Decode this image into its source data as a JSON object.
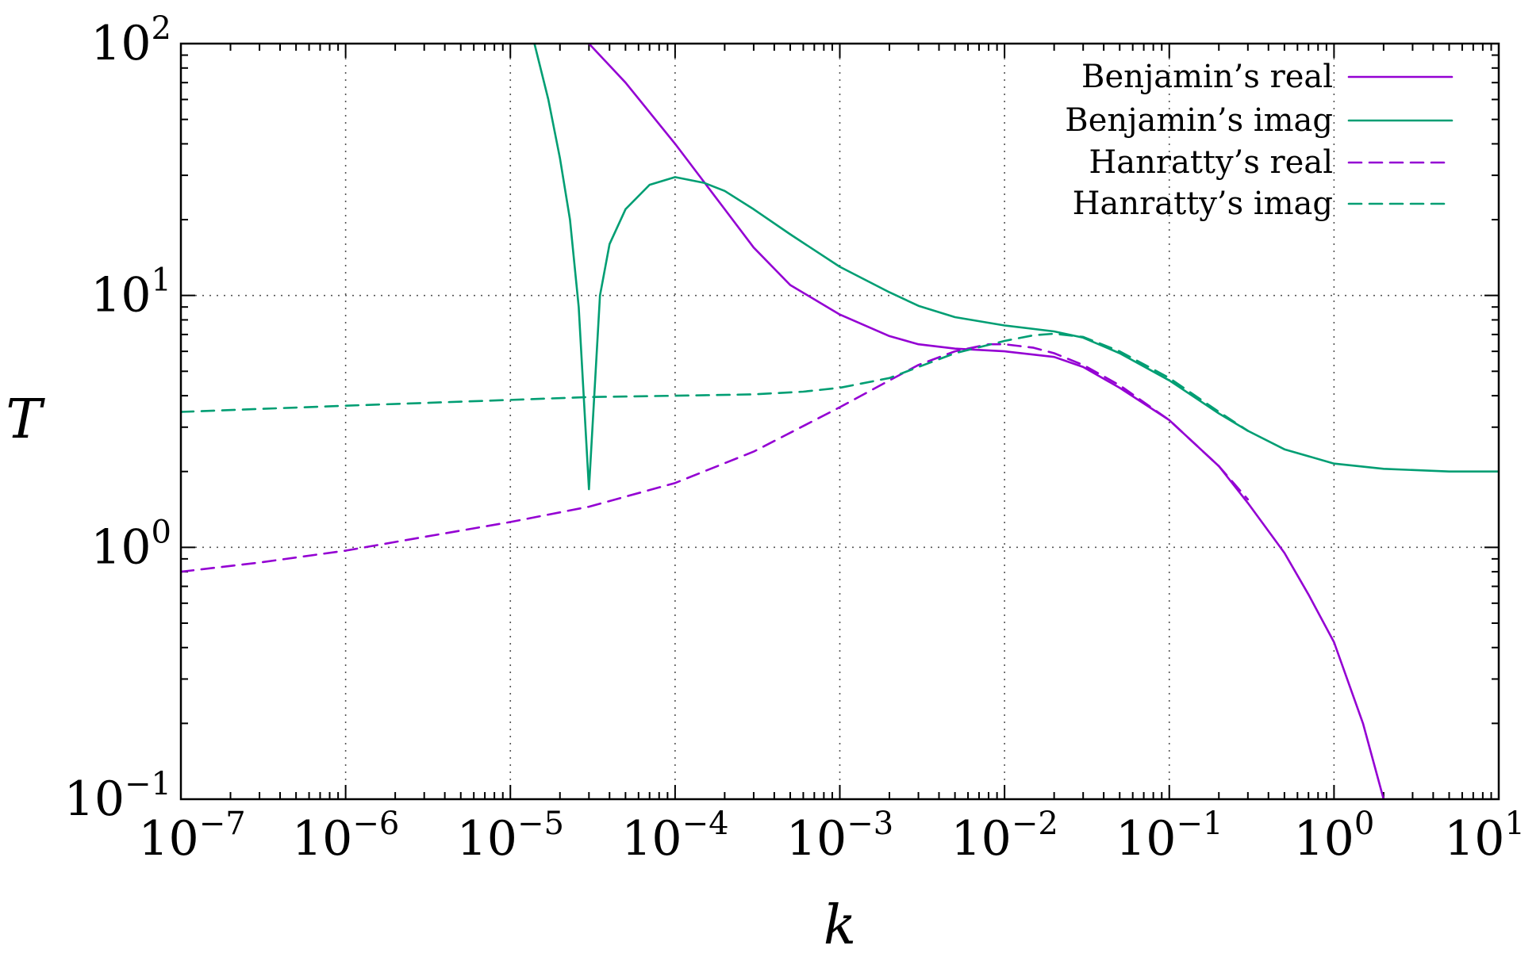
{
  "chart_data": {
    "type": "line",
    "xlabel": "k",
    "ylabel": "T",
    "x_scale": "log",
    "y_scale": "log",
    "xlim": [
      1e-07,
      10
    ],
    "ylim": [
      0.1,
      100
    ],
    "grid": true,
    "legend_position": "top-right",
    "x_ticks": [
      {
        "value": 1e-07,
        "base": "10",
        "exp": "−7"
      },
      {
        "value": 1e-06,
        "base": "10",
        "exp": "−6"
      },
      {
        "value": 1e-05,
        "base": "10",
        "exp": "−5"
      },
      {
        "value": 0.0001,
        "base": "10",
        "exp": "−4"
      },
      {
        "value": 0.001,
        "base": "10",
        "exp": "−3"
      },
      {
        "value": 0.01,
        "base": "10",
        "exp": "−2"
      },
      {
        "value": 0.1,
        "base": "10",
        "exp": "−1"
      },
      {
        "value": 1,
        "base": "10",
        "exp": "0"
      },
      {
        "value": 10,
        "base": "10",
        "exp": "1"
      }
    ],
    "y_ticks": [
      {
        "value": 0.1,
        "base": "10",
        "exp": "−1"
      },
      {
        "value": 1,
        "base": "10",
        "exp": "0"
      },
      {
        "value": 10,
        "base": "10",
        "exp": "1"
      },
      {
        "value": 100,
        "base": "10",
        "exp": "2"
      }
    ],
    "series": [
      {
        "name": "Benjamin’s real",
        "color": "#9400d3",
        "dash": "solid",
        "points": [
          [
            3e-05,
            100
          ],
          [
            5e-05,
            70
          ],
          [
            0.0001,
            40
          ],
          [
            0.0002,
            22
          ],
          [
            0.0003,
            15.5
          ],
          [
            0.0005,
            11
          ],
          [
            0.001,
            8.4
          ],
          [
            0.002,
            6.9
          ],
          [
            0.003,
            6.4
          ],
          [
            0.005,
            6.15
          ],
          [
            0.01,
            6.0
          ],
          [
            0.02,
            5.7
          ],
          [
            0.03,
            5.2
          ],
          [
            0.05,
            4.3
          ],
          [
            0.1,
            3.2
          ],
          [
            0.2,
            2.1
          ],
          [
            0.3,
            1.5
          ],
          [
            0.5,
            0.95
          ],
          [
            0.7,
            0.65
          ],
          [
            1,
            0.42
          ],
          [
            1.5,
            0.2
          ],
          [
            2,
            0.1
          ]
        ]
      },
      {
        "name": "Benjamin’s imag",
        "color": "#009e73",
        "dash": "solid",
        "points": [
          [
            1.4e-05,
            100
          ],
          [
            1.7e-05,
            60
          ],
          [
            2e-05,
            35
          ],
          [
            2.3e-05,
            20
          ],
          [
            2.6e-05,
            9
          ],
          [
            3e-05,
            1.7
          ],
          [
            3.5e-05,
            10
          ],
          [
            4e-05,
            16
          ],
          [
            5e-05,
            22
          ],
          [
            7e-05,
            27.5
          ],
          [
            0.0001,
            29.5
          ],
          [
            0.00015,
            28
          ],
          [
            0.0002,
            26
          ],
          [
            0.0003,
            22
          ],
          [
            0.0005,
            17.5
          ],
          [
            0.001,
            13
          ],
          [
            0.002,
            10.3
          ],
          [
            0.003,
            9.1
          ],
          [
            0.005,
            8.2
          ],
          [
            0.01,
            7.6
          ],
          [
            0.02,
            7.2
          ],
          [
            0.03,
            6.8
          ],
          [
            0.05,
            5.9
          ],
          [
            0.1,
            4.6
          ],
          [
            0.2,
            3.4
          ],
          [
            0.3,
            2.9
          ],
          [
            0.5,
            2.45
          ],
          [
            1,
            2.15
          ],
          [
            2,
            2.05
          ],
          [
            5,
            2.0
          ],
          [
            10,
            2.0
          ]
        ]
      },
      {
        "name": "Hanratty’s real",
        "color": "#9400d3",
        "dash": "dashed",
        "points": [
          [
            1e-07,
            0.8
          ],
          [
            3e-07,
            0.87
          ],
          [
            1e-06,
            0.97
          ],
          [
            3e-06,
            1.1
          ],
          [
            1e-05,
            1.26
          ],
          [
            3e-05,
            1.45
          ],
          [
            0.0001,
            1.8
          ],
          [
            0.0003,
            2.4
          ],
          [
            0.001,
            3.6
          ],
          [
            0.002,
            4.6
          ],
          [
            0.003,
            5.3
          ],
          [
            0.005,
            6.0
          ],
          [
            0.008,
            6.4
          ],
          [
            0.01,
            6.4
          ],
          [
            0.015,
            6.2
          ],
          [
            0.02,
            5.9
          ],
          [
            0.03,
            5.3
          ],
          [
            0.05,
            4.4
          ],
          [
            0.1,
            3.2
          ],
          [
            0.2,
            2.1
          ],
          [
            0.3,
            1.55
          ]
        ]
      },
      {
        "name": "Hanratty’s imag",
        "color": "#009e73",
        "dash": "dashed",
        "points": [
          [
            1e-07,
            3.45
          ],
          [
            1e-06,
            3.65
          ],
          [
            1e-05,
            3.85
          ],
          [
            3e-05,
            3.95
          ],
          [
            0.0001,
            4.0
          ],
          [
            0.0003,
            4.05
          ],
          [
            0.0006,
            4.15
          ],
          [
            0.001,
            4.3
          ],
          [
            0.002,
            4.7
          ],
          [
            0.003,
            5.2
          ],
          [
            0.005,
            5.9
          ],
          [
            0.01,
            6.6
          ],
          [
            0.015,
            6.95
          ],
          [
            0.02,
            7.05
          ],
          [
            0.03,
            6.85
          ],
          [
            0.05,
            6.0
          ],
          [
            0.1,
            4.7
          ],
          [
            0.2,
            3.45
          ],
          [
            0.3,
            2.9
          ]
        ]
      }
    ]
  }
}
